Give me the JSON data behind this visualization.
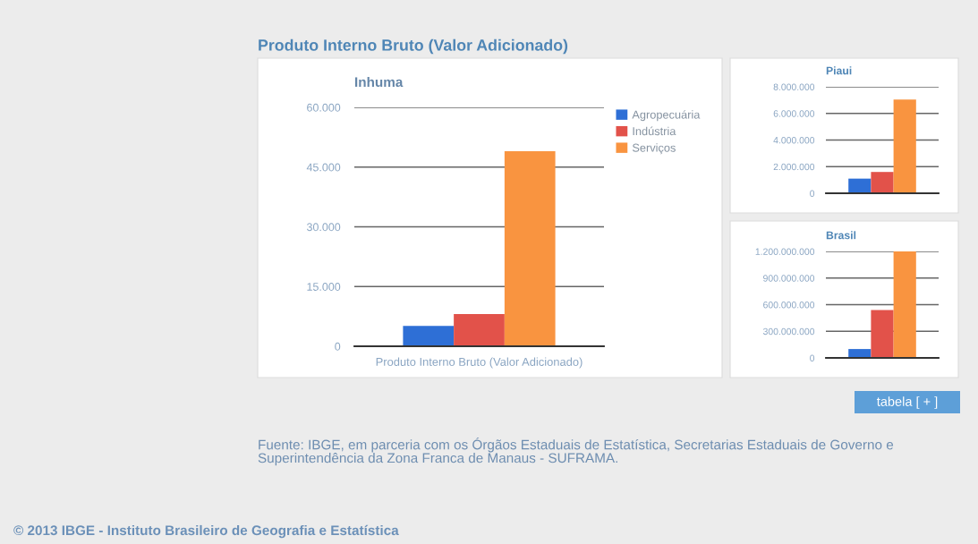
{
  "chart_data": [
    {
      "type": "bar",
      "title": "Produto Interno Bruto (Valor Adicionado)",
      "subtitle": "Inhuma",
      "categories": [
        null
      ],
      "xlabel": "Produto Interno Bruto (Valor Adicionado)",
      "series": [
        {
          "name": "Agropecuária",
          "color": "#2e6fd6",
          "values": [
            5100
          ]
        },
        {
          "name": "Indústria",
          "color": "#e2524a",
          "values": [
            8100
          ]
        },
        {
          "name": "Serviços",
          "color": "#f99440",
          "values": [
            49000
          ]
        }
      ],
      "ylim": [
        0,
        60000
      ],
      "yticks": [
        0,
        {
          "value": 15000,
          "label": "15.000"
        },
        {
          "value": 30000,
          "label": "30.000"
        },
        {
          "value": 45000,
          "label": "45.000"
        },
        {
          "value": 60000,
          "label": "60.000"
        }
      ],
      "grid": "y",
      "legend": "top right",
      "annotations": [
        "Fuente: IBGE, em parceria com os Órgãos Estaduais de Estatística, Secretarias Estaduais de Governo e Superintendência da Zona Franca de Manaus - SUFRAMA.",
        "© 2013 IBGE - Instituto Brasileiro de Geografia e Estatística"
      ]
    },
    {
      "type": "bar",
      "title": "Piaui",
      "categories": [
        null
      ],
      "series": [
        {
          "color": "#2e6fd6",
          "values": [
            1100000
          ]
        },
        {
          "color": "#e2524a",
          "values": [
            1600000
          ]
        },
        {
          "color": "#f99440",
          "values": [
            7050000
          ]
        }
      ],
      "ylim": [
        0,
        8000000
      ],
      "yticks": [
        0,
        {
          "value": 2000000,
          "label": "2.000.000"
        },
        {
          "value": 4000000,
          "label": "4.000.000"
        },
        {
          "value": 6000000,
          "label": "6.000.000"
        },
        {
          "value": 8000000,
          "label": "8.000.000"
        }
      ],
      "grid": "y"
    },
    {
      "type": "bar",
      "title": "Brasil",
      "categories": [
        null
      ],
      "series": [
        {
          "color": "#2e6fd6",
          "values": [
            100000000
          ]
        },
        {
          "color": "#e2524a",
          "values": [
            540000000
          ]
        },
        {
          "color": "#f99440",
          "values": [
            1200000000
          ]
        }
      ],
      "ylim": [
        0,
        1200000000
      ],
      "yticks": [
        0,
        {
          "value": 300000000,
          "label": "300.000.000"
        },
        {
          "value": 600000000,
          "label": "600.000.000"
        },
        {
          "value": 900000000,
          "label": "900.000.000"
        },
        {
          "value": 1200000000,
          "label": "1.200.000.000"
        }
      ],
      "grid": "y",
      "annotations": [
        "tabela [ + ]"
      ]
    }
  ]
}
